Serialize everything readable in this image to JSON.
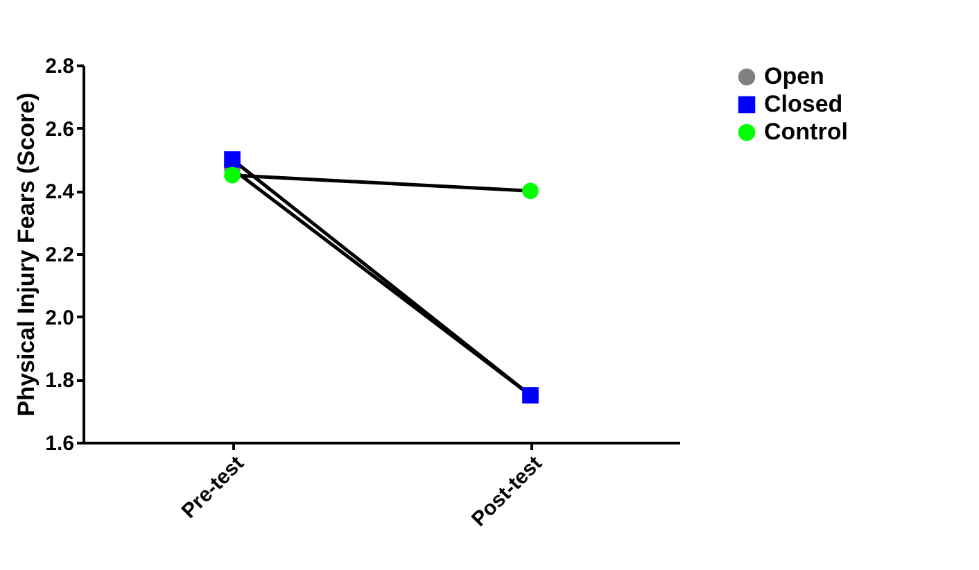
{
  "chart_data": {
    "type": "line",
    "ylabel": "Physical Injury Fears  (Score)",
    "categories": [
      "Pre-test",
      "Post-test"
    ],
    "series": [
      {
        "name": "Open",
        "color": "#808080",
        "marker": "circle",
        "values": [
          2.47,
          1.75
        ]
      },
      {
        "name": "Closed",
        "color": "#0000ff",
        "marker": "square",
        "values": [
          2.5,
          1.75
        ]
      },
      {
        "name": "Control",
        "color": "#00ff00",
        "marker": "circle",
        "values": [
          2.45,
          2.4
        ]
      }
    ],
    "ylim": [
      1.6,
      2.8
    ],
    "yticks": [
      1.6,
      1.8,
      {
        "value": 2,
        "label": "2.0"
      },
      2.2,
      2.4,
      2.6,
      2.8
    ],
    "grid": false,
    "legend": "top right",
    "line_style": "solid"
  }
}
